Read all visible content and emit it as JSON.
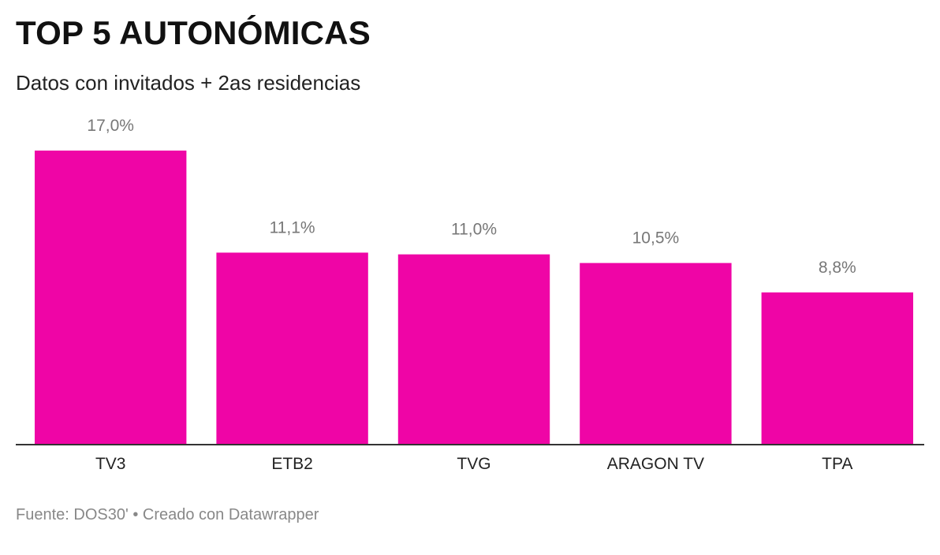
{
  "header": {
    "title": "TOP 5 AUTONÓMICAS",
    "subtitle": "Datos con invitados + 2as residencias"
  },
  "chart_data": {
    "type": "bar",
    "title": "TOP 5 AUTONÓMICAS",
    "subtitle": "Datos con invitados + 2as residencias",
    "categories": [
      "TV3",
      "ETB2",
      "TVG",
      "ARAGON TV",
      "TPA"
    ],
    "values": [
      17.0,
      11.1,
      11.0,
      10.5,
      8.8
    ],
    "value_labels": [
      "17,0%",
      "11,1%",
      "11,0%",
      "10,5%",
      "8,8%"
    ],
    "ylim": [
      0,
      17.0
    ],
    "grid": false,
    "legend": "none",
    "colors": {
      "bar": "#ef05a6",
      "value_label": "#777777",
      "category_label": "#222222",
      "baseline": "#333333"
    }
  },
  "footer": {
    "source": "Fuente: DOS30' • Creado con Datawrapper"
  }
}
